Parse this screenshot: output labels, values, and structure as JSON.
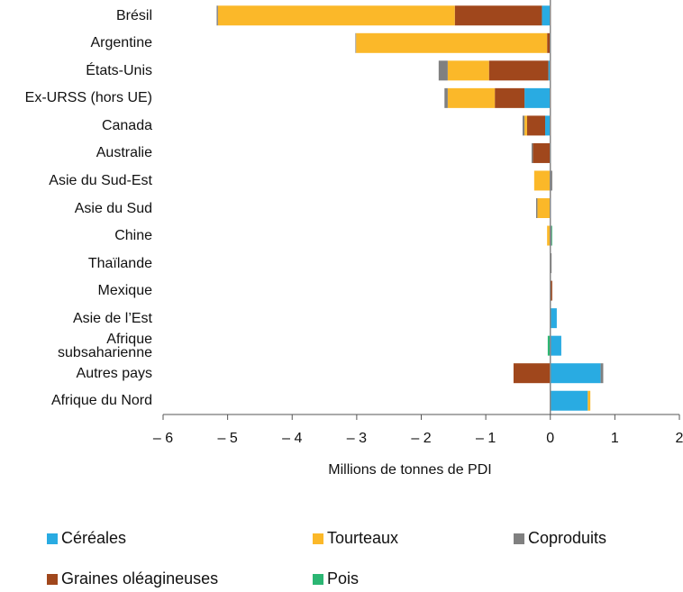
{
  "chart_data": {
    "type": "stacked_barh",
    "xlabel": "Millions de tonnes de PDI",
    "categories": [
      "Brésil",
      "Argentine",
      "États-Unis",
      "Ex-URSS (hors UE)",
      "Canada",
      "Australie",
      "Asie du Sud-Est",
      "Asie du Sud",
      "Chine",
      "Thaïlande",
      "Mexique",
      "Asie de l’Est",
      "Afrique\nsubsaharienne",
      "Autres pays",
      "Afrique du Nord"
    ],
    "series": [
      {
        "name": "Céréales",
        "color": "#29abe2",
        "values": [
          -0.13,
          0,
          -0.03,
          -0.4,
          -0.08,
          0,
          0,
          0,
          0,
          0,
          0,
          0.1,
          0.17,
          0.78,
          0.58
        ]
      },
      {
        "name": "Graines oléagineuses",
        "color": "#a0471c",
        "values": [
          -1.35,
          -0.05,
          -0.92,
          -0.46,
          -0.28,
          -0.27,
          0,
          0,
          0,
          0,
          0.03,
          0,
          0,
          -0.57,
          0
        ]
      },
      {
        "name": "Tourteaux",
        "color": "#fbb829",
        "values": [
          -3.67,
          -2.96,
          -0.64,
          -0.73,
          -0.04,
          0,
          -0.25,
          -0.2,
          -0.05,
          0,
          0,
          0,
          0,
          0,
          0.04
        ]
      },
      {
        "name": "Coproduits",
        "color": "#808080",
        "values": [
          -0.02,
          -0.01,
          -0.14,
          -0.05,
          -0.03,
          -0.02,
          0.03,
          -0.02,
          0.02,
          0.02,
          0,
          0,
          0,
          0.04,
          0
        ]
      },
      {
        "name": "Pois",
        "color": "#2bb673",
        "values": [
          0,
          0,
          0,
          0,
          0,
          0,
          0,
          0,
          0.01,
          0,
          0,
          0,
          -0.04,
          0,
          0
        ]
      }
    ],
    "xlim": [
      -6,
      2
    ],
    "xticks": [
      {
        "value": -6,
        "label": "– 6"
      },
      {
        "value": -5,
        "label": "– 5"
      },
      {
        "value": -4,
        "label": "– 4"
      },
      {
        "value": -3,
        "label": "– 3"
      },
      {
        "value": -2,
        "label": "– 2"
      },
      {
        "value": -1,
        "label": "– 1"
      },
      0,
      1,
      2
    ]
  }
}
